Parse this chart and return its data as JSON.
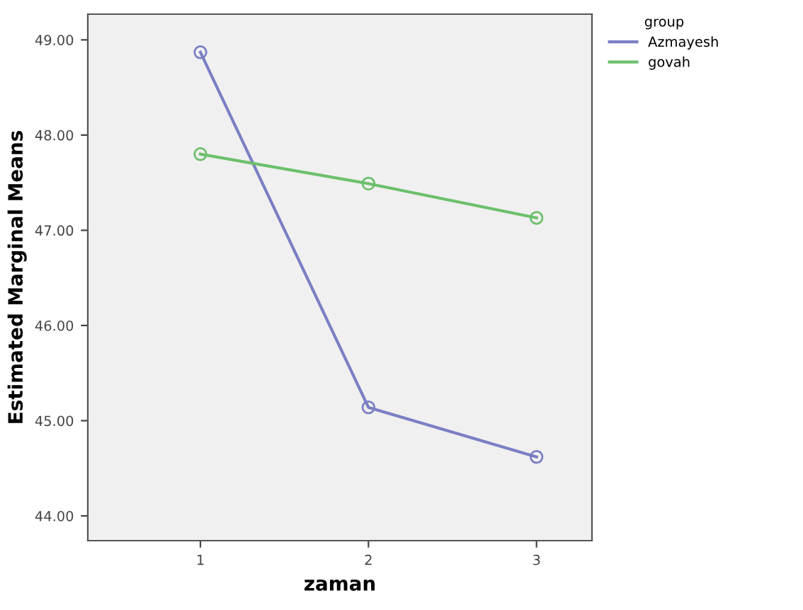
{
  "chart_data": {
    "type": "line",
    "xlabel": "zaman",
    "ylabel": "Estimated Marginal Means",
    "legend_title": "group",
    "categories": [
      "1",
      "2",
      "3"
    ],
    "series": [
      {
        "name": "Azmayesh",
        "color": "#7b7fc4",
        "values": [
          48.87,
          45.14,
          44.62
        ]
      },
      {
        "name": "govah",
        "color": "#6cc06c",
        "values": [
          47.8,
          47.49,
          47.13
        ]
      }
    ],
    "ylim": [
      43.74,
      49.27
    ],
    "yticks": [
      {
        "value": 44,
        "label": "44.00"
      },
      {
        "value": 45,
        "label": "45.00"
      },
      {
        "value": 46,
        "label": "46.00"
      },
      {
        "value": 47,
        "label": "47.00"
      },
      {
        "value": 48,
        "label": "48.00"
      },
      {
        "value": 49,
        "label": "49.00"
      }
    ],
    "marker": "circle",
    "line_style": "solid",
    "legend": "top right",
    "grid": false
  }
}
